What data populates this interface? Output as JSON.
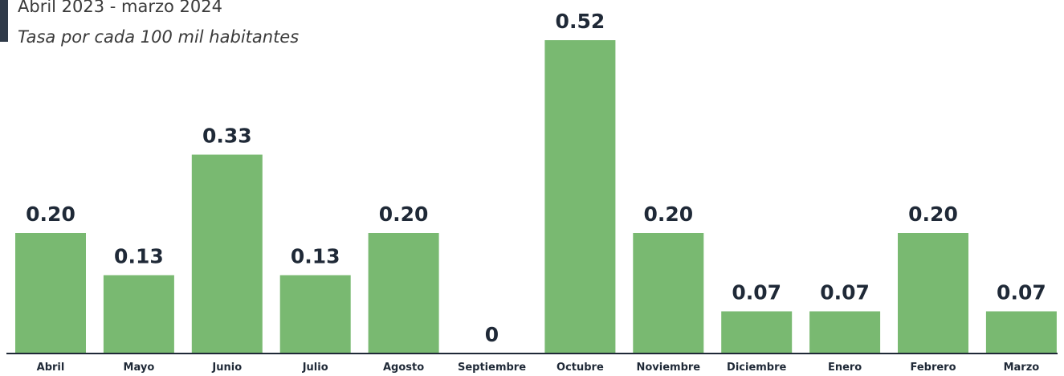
{
  "header": {
    "subtitle": "Abril 2023 - marzo 2024",
    "note": "Tasa por cada 100 mil habitantes"
  },
  "colors": {
    "bar": "#79b971",
    "axis": "#1f2937",
    "accent": "#2f3a49"
  },
  "chart_data": {
    "type": "bar",
    "title": "",
    "xlabel": "",
    "ylabel": "",
    "categories": [
      "Abril",
      "Mayo",
      "Junio",
      "Julio",
      "Agosto",
      "Septiembre",
      "Octubre",
      "Noviembre",
      "Diciembre",
      "Enero",
      "Febrero",
      "Marzo"
    ],
    "values": [
      0.2,
      0.13,
      0.33,
      0.13,
      0.2,
      0,
      0.52,
      0.2,
      0.07,
      0.07,
      0.2,
      0.07
    ],
    "value_labels": [
      "0.20",
      "0.13",
      "0.33",
      "0.13",
      "0.20",
      "0",
      "0.52",
      "0.20",
      "0.07",
      "0.07",
      "0.20",
      "0.07"
    ],
    "ylim": [
      0,
      0.52
    ],
    "grid": false,
    "legend": "none"
  }
}
